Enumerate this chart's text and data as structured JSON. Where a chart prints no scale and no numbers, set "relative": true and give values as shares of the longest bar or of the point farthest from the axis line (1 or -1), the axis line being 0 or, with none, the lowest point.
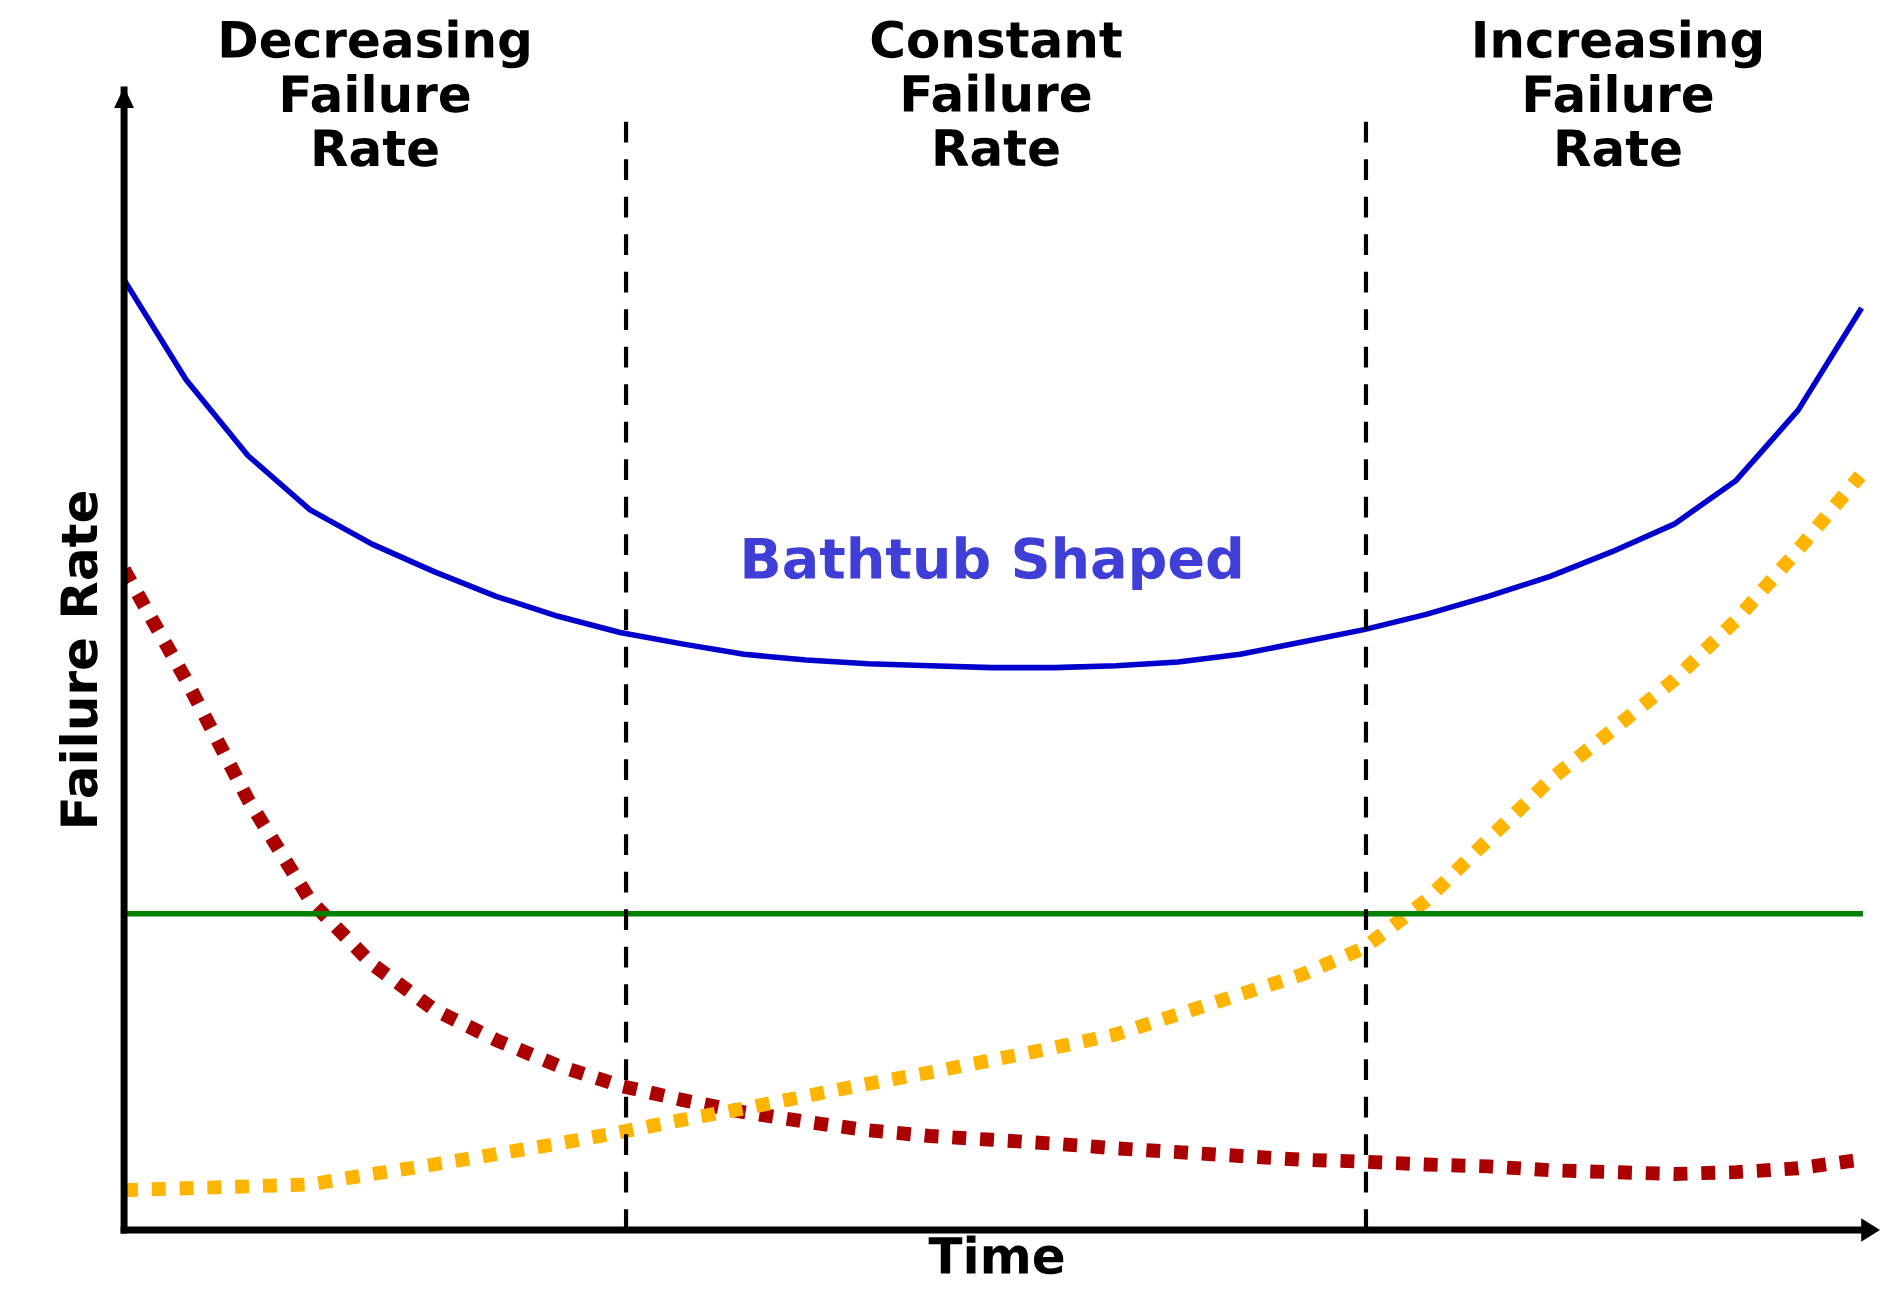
{
  "chart_data": {
    "type": "line",
    "relative": true,
    "xlabel": "Time",
    "ylabel": "Failure Rate",
    "categories": [
      null,
      null,
      null,
      null,
      null,
      null,
      null,
      null,
      null,
      null,
      null,
      null,
      null,
      null,
      null,
      null,
      null,
      null,
      null,
      null,
      null,
      null,
      null,
      null,
      null,
      null,
      null,
      null,
      null
    ],
    "series": [
      {
        "name": "Bathtub Shaped",
        "color": "#0000cc",
        "line_style": "solid",
        "values": [
          1.0,
          0.895,
          0.815,
          0.758,
          0.722,
          0.693,
          0.667,
          0.646,
          0.629,
          0.617,
          0.606,
          0.6,
          0.596,
          0.594,
          0.592,
          0.592,
          0.594,
          0.598,
          0.606,
          0.619,
          0.632,
          0.648,
          0.667,
          0.688,
          0.714,
          0.743,
          0.789,
          0.863,
          0.968
        ]
      },
      {
        "color": "#aa0000",
        "line_style": "dotted",
        "values": [
          0.695,
          0.579,
          0.453,
          0.347,
          0.28,
          0.232,
          0.2,
          0.173,
          0.152,
          0.137,
          0.124,
          0.114,
          0.105,
          0.099,
          0.095,
          0.091,
          0.086,
          0.082,
          0.078,
          0.074,
          0.072,
          0.069,
          0.067,
          0.063,
          0.061,
          0.059,
          0.061,
          0.065,
          0.074
        ]
      },
      {
        "color": "#ffb400",
        "line_style": "dotted",
        "values": [
          0.042,
          0.044,
          0.046,
          0.048,
          0.059,
          0.069,
          0.08,
          0.091,
          0.103,
          0.116,
          0.128,
          0.141,
          0.154,
          0.166,
          0.179,
          0.192,
          0.206,
          0.227,
          0.248,
          0.269,
          0.297,
          0.347,
          0.411,
          0.474,
          0.526,
          0.579,
          0.642,
          0.716,
          0.794
        ]
      },
      {
        "color": "#008000",
        "line_style": "solid",
        "values": [
          0.333,
          0.333,
          0.333,
          0.333,
          0.333,
          0.333,
          0.333,
          0.333,
          0.333,
          0.333,
          0.333,
          0.333,
          0.333,
          0.333,
          0.333,
          0.333,
          0.333,
          0.333,
          0.333,
          0.333,
          0.333,
          0.333,
          0.333,
          0.333,
          0.333,
          0.333,
          0.333,
          0.333,
          0.333
        ]
      }
    ],
    "annotations": [
      "Decreasing\nFailure\nRate",
      "Constant\nFailure\nRate",
      "Increasing\nFailure\nRate"
    ]
  }
}
